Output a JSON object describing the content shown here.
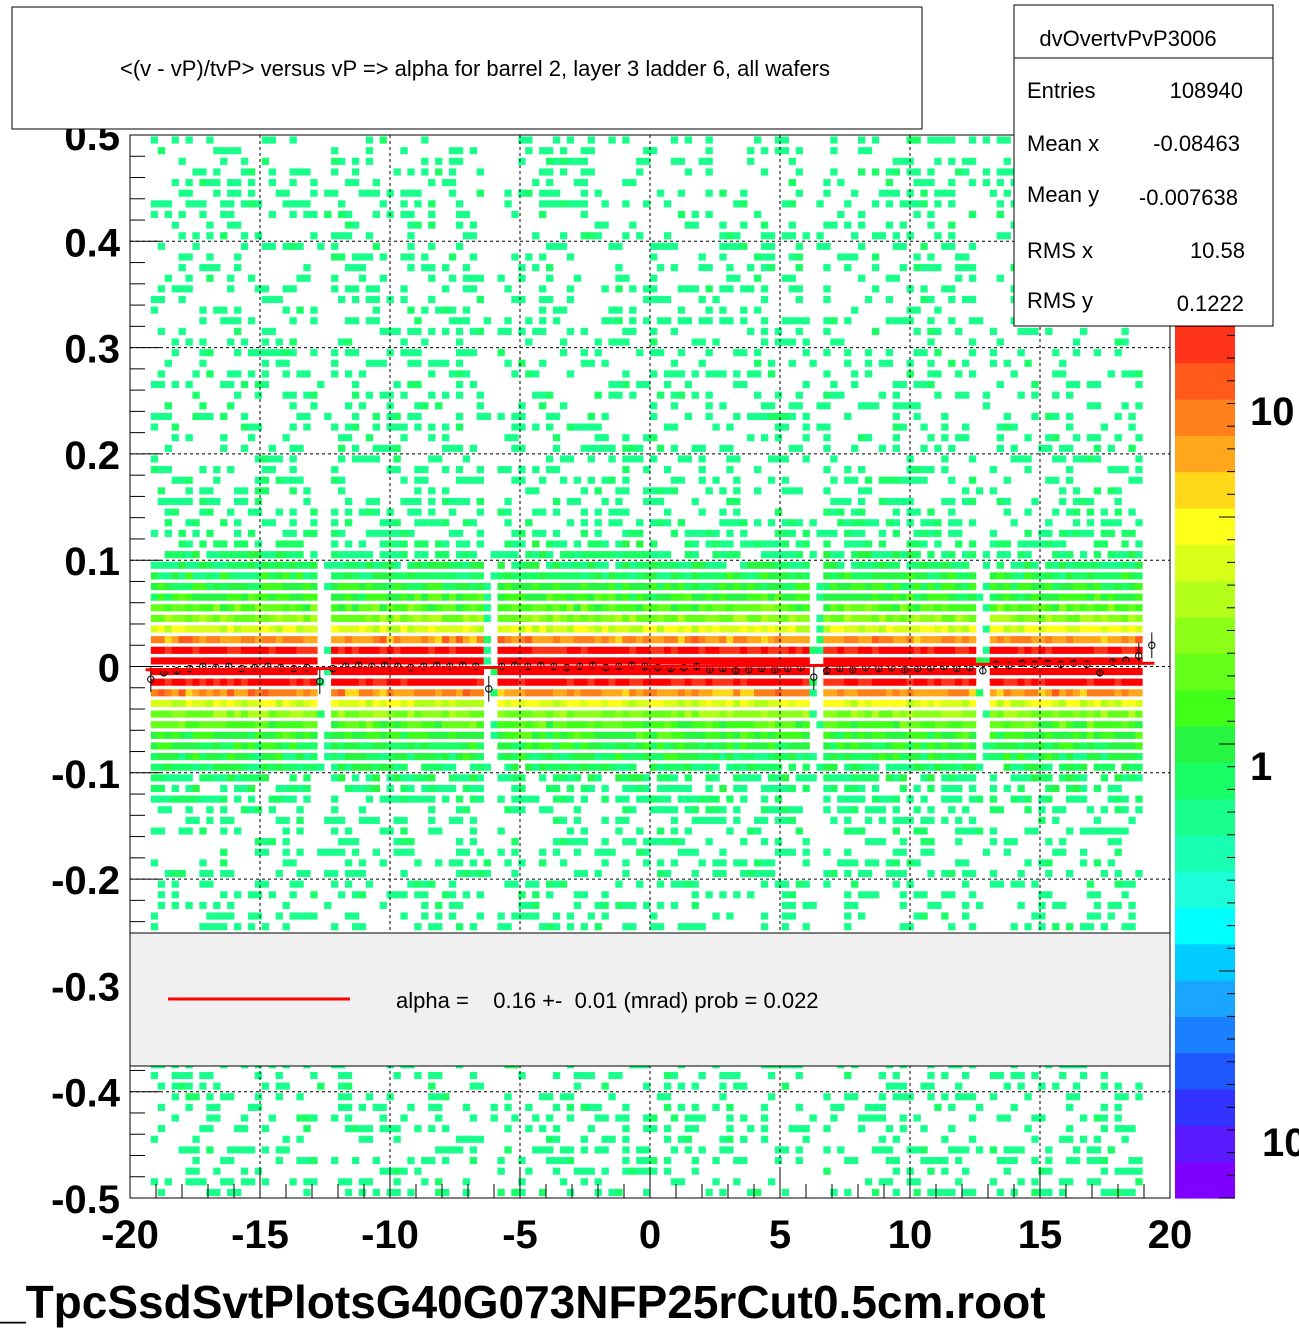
{
  "chart_data": {
    "type": "heatmap",
    "title": "<(v - vP)/tvP> versus   vP => alpha for barrel 2, layer 3 ladder 6, all wafers",
    "xlabel": "",
    "ylabel": "",
    "xlim": [
      -20,
      20
    ],
    "ylim": [
      -0.5,
      0.5
    ],
    "x_ticks": [
      "-20",
      "-15",
      "-10",
      "-5",
      "0",
      "5",
      "10",
      "15",
      "20"
    ],
    "y_ticks": [
      "0.5",
      "0.4",
      "0.3",
      "0.2",
      "0.1",
      "0",
      "-0.1",
      "-0.2",
      "-0.3",
      "-0.4",
      "-0.5"
    ],
    "colorbar_labels": [
      "10",
      "1",
      "10"
    ],
    "color_scale": "log",
    "grid": true,
    "band_center_y": 0.0,
    "gaps_x": [
      -12.6,
      -6.2,
      6.3,
      12.9
    ],
    "profile_points": {
      "x": [
        -19.2,
        -18.7,
        -18.2,
        -17.7,
        -17.2,
        -16.7,
        -16.2,
        -15.7,
        -15.2,
        -14.7,
        -14.2,
        -13.7,
        -13.2,
        -12.7,
        -12.2,
        -11.7,
        -11.2,
        -10.7,
        -10.2,
        -9.7,
        -9.2,
        -8.7,
        -8.2,
        -7.7,
        -7.2,
        -6.7,
        -6.2,
        -5.7,
        -5.2,
        -4.7,
        -4.2,
        -3.7,
        -3.2,
        -2.7,
        -2.2,
        -1.7,
        -1.2,
        -0.7,
        -0.2,
        0.3,
        0.8,
        1.3,
        1.8,
        2.3,
        2.8,
        3.3,
        3.8,
        4.3,
        4.8,
        5.3,
        5.8,
        6.3,
        6.8,
        7.3,
        7.8,
        8.3,
        8.8,
        9.3,
        9.8,
        10.3,
        10.8,
        11.3,
        11.8,
        12.3,
        12.8,
        13.3,
        13.8,
        14.3,
        14.8,
        15.3,
        15.8,
        16.3,
        16.8,
        17.3,
        17.8,
        18.3,
        18.8,
        19.3
      ],
      "y": [
        -0.012,
        -0.006,
        -0.004,
        -0.002,
        0.0,
        -0.001,
        0.0,
        -0.002,
        -0.001,
        0.0,
        -0.001,
        -0.002,
        -0.001,
        -0.014,
        -0.002,
        0.0,
        0.001,
        0.0,
        0.001,
        0.0,
        -0.001,
        0.0,
        0.001,
        0.0,
        0.001,
        0.0,
        -0.021,
        0.0,
        0.001,
        0.0,
        0.001,
        0.0,
        -0.001,
        0.0,
        0.001,
        -0.001,
        0.0,
        0.001,
        0.0,
        -0.001,
        -0.002,
        -0.001,
        0.0,
        -0.003,
        -0.002,
        -0.004,
        -0.003,
        -0.002,
        -0.003,
        -0.002,
        -0.001,
        -0.01,
        -0.004,
        -0.002,
        -0.003,
        -0.001,
        -0.002,
        -0.001,
        -0.003,
        -0.002,
        -0.001,
        0.0,
        -0.002,
        -0.001,
        -0.004,
        0.002,
        0.001,
        0.003,
        0.002,
        0.003,
        0.002,
        0.003,
        0.002,
        -0.006,
        0.004,
        0.006,
        0.01,
        0.02
      ],
      "color": "#000000"
    },
    "fit": {
      "type": "line",
      "x": [
        -19.4,
        19.4
      ],
      "y": [
        -0.003,
        0.003
      ],
      "color": "#ff0000"
    }
  },
  "stats_box": {
    "name": "dvOvertvPvP3006",
    "rows": [
      {
        "label": "Entries",
        "value": "108940"
      },
      {
        "label": "Mean x",
        "value": "-0.08463"
      },
      {
        "label": "Mean y",
        "value": "-0.007638"
      },
      {
        "label": "RMS x",
        "value": "10.58"
      },
      {
        "label": "RMS y",
        "value": "0.1222"
      }
    ]
  },
  "legend": {
    "text": "alpha =    0.16 +-  0.01 (mrad) prob = 0.022",
    "line_color": "#ff0000"
  },
  "footer": "_TpcSsdSvtPlotsG40G073NFP25rCut0.5cm.root",
  "colors": {
    "palette": [
      "#7f00ff",
      "#5b19ff",
      "#3333ff",
      "#1f58ff",
      "#1a80ff",
      "#1aa6ff",
      "#00ccff",
      "#00ffff",
      "#1affd9",
      "#19ffb2",
      "#19ff8c",
      "#19ff66",
      "#26f542",
      "#40ff19",
      "#66ff19",
      "#8cff19",
      "#b2ff19",
      "#d9ff19",
      "#ffff19",
      "#ffd919",
      "#ffa61a",
      "#ff801a",
      "#ff5a1a",
      "#ff3319",
      "#ff0000"
    ],
    "legend_bg": "#f0f0f0",
    "fit_line": "#ff0000"
  }
}
